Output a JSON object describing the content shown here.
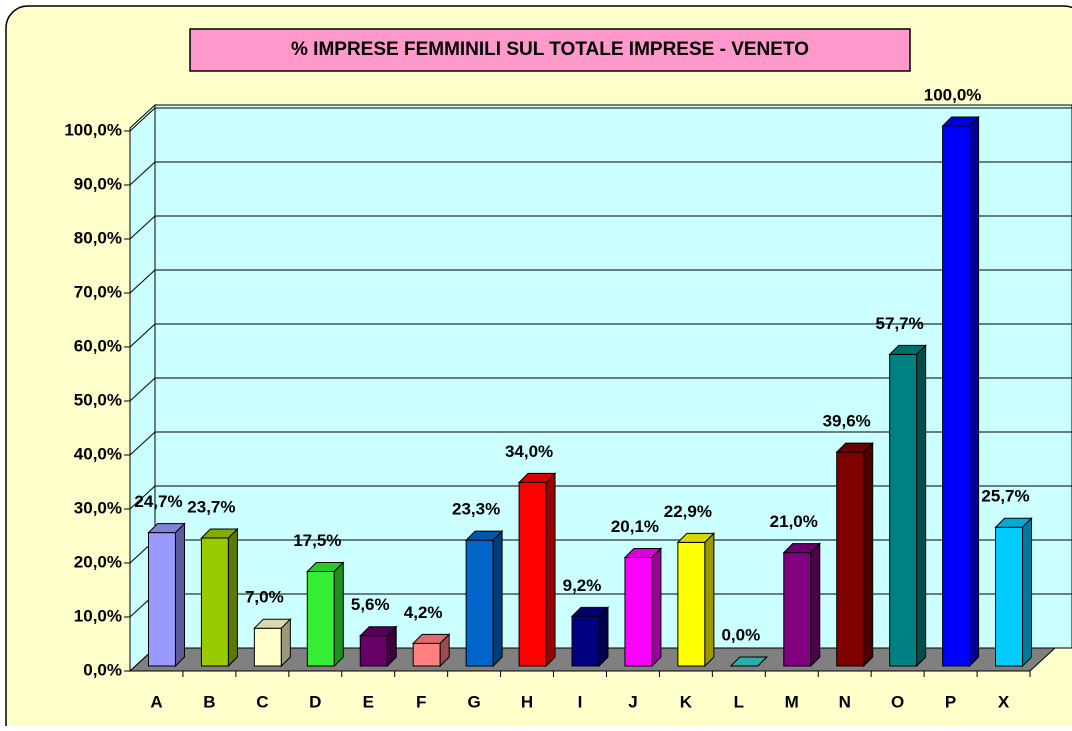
{
  "chart_data": {
    "type": "bar3d",
    "title": "% IMPRESE FEMMINILI SUL TOTALE IMPRESE - VENETO",
    "categories": [
      "A",
      "B",
      "C",
      "D",
      "E",
      "F",
      "G",
      "H",
      "I",
      "J",
      "K",
      "L",
      "M",
      "N",
      "O",
      "P",
      "X"
    ],
    "values": [
      24.7,
      23.7,
      7.0,
      17.5,
      5.6,
      4.2,
      23.3,
      34.0,
      9.2,
      20.1,
      22.9,
      0.0,
      21.0,
      39.6,
      57.7,
      100.0,
      25.7
    ],
    "value_labels": [
      "24,7%",
      "23,7%",
      "7,0%",
      "17,5%",
      "5,6%",
      "4,2%",
      "23,3%",
      "34,0%",
      "9,2%",
      "20,1%",
      "22,9%",
      "0,0%",
      "21,0%",
      "39,6%",
      "57,7%",
      "100,0%",
      "25,7%"
    ],
    "colors": [
      "#9999ff",
      "#99cc00",
      "#ffffcc",
      "#33ee33",
      "#660066",
      "#ff8080",
      "#0066cc",
      "#ff0000",
      "#000080",
      "#ff00ff",
      "#ffff00",
      "#33cccc",
      "#800080",
      "#800000",
      "#008080",
      "#0000ff",
      "#00ccff"
    ],
    "ylim": [
      0,
      100
    ],
    "yticks": [
      {
        "value": 0,
        "label": "0,0%"
      },
      {
        "value": 10,
        "label": "10,0%"
      },
      {
        "value": 20,
        "label": "20,0%"
      },
      {
        "value": 30,
        "label": "30,0%"
      },
      {
        "value": 40,
        "label": "40,0%"
      },
      {
        "value": 50,
        "label": "50,0%"
      },
      {
        "value": 60,
        "label": "60,0%"
      },
      {
        "value": 70,
        "label": "70,0%"
      },
      {
        "value": 80,
        "label": "80,0%"
      },
      {
        "value": 90,
        "label": "90,0%"
      },
      {
        "value": 100,
        "label": "100,0%"
      }
    ],
    "grid": true
  }
}
